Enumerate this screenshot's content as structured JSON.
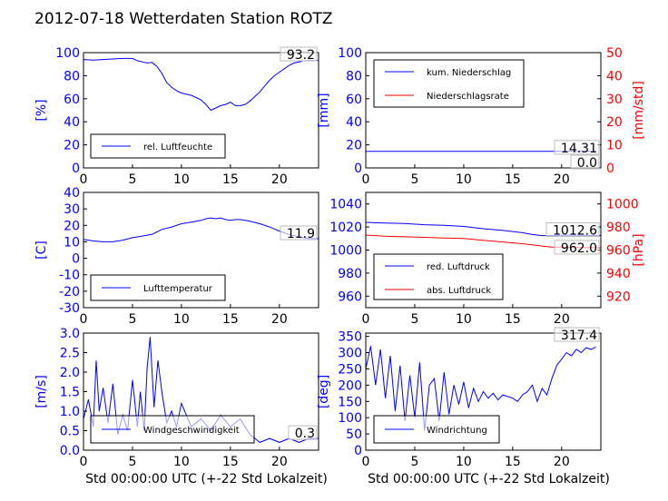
{
  "title": "2012-07-18 Wetterdaten Station ROTZ",
  "colors": {
    "primary": "#0000ff",
    "secondary": "#ff0000",
    "axis": "#000000"
  },
  "chart_data": [
    {
      "id": "humidity",
      "type": "line",
      "ylabel": "[%]",
      "xlim": [
        0,
        24
      ],
      "ylim": [
        0,
        100
      ],
      "xticks": [
        0,
        5,
        10,
        15,
        20
      ],
      "yticks": [
        0,
        20,
        40,
        60,
        80,
        100
      ],
      "series": [
        {
          "name": "rel. Luftfeuchte",
          "color": "#0000ff",
          "x": [
            0,
            1,
            2,
            3,
            4,
            5,
            5.5,
            6,
            6.5,
            7,
            7.5,
            8,
            8.5,
            9,
            9.5,
            10,
            10.5,
            11,
            11.5,
            12,
            12.5,
            13,
            13.5,
            14,
            14.5,
            15,
            15.5,
            16,
            16.5,
            17,
            17.5,
            18,
            18.5,
            19,
            19.5,
            20,
            20.5,
            21,
            21.5,
            22,
            22.5,
            23,
            24
          ],
          "y": [
            94,
            93.5,
            94,
            94.5,
            95,
            95,
            93,
            92,
            91,
            91.5,
            88,
            82,
            74,
            70,
            67,
            65,
            64,
            63,
            61,
            59,
            55,
            50,
            52,
            54,
            55,
            57,
            54,
            54,
            55,
            58,
            62,
            66,
            71,
            76,
            80,
            83,
            86,
            89,
            91,
            92,
            93,
            93.2,
            93.2
          ]
        }
      ],
      "last_value": "93.2",
      "last_label_position": "top-right",
      "legend": {
        "position": "lower-left"
      }
    },
    {
      "id": "precipitation",
      "type": "line",
      "ylabel": "[mm]",
      "ylabel_right": "[mm/std]",
      "xlim": [
        0,
        24
      ],
      "ylim": [
        0,
        100
      ],
      "ylim_right": [
        0,
        50
      ],
      "xticks": [
        0,
        5,
        10,
        15,
        20
      ],
      "yticks": [
        0,
        20,
        40,
        60,
        80,
        100
      ],
      "yticks_right": [
        0,
        10,
        20,
        30,
        40,
        50
      ],
      "series": [
        {
          "name": "kum. Niederschlag",
          "color": "#0000ff",
          "axis": "left",
          "x": [
            0,
            23.5
          ],
          "y": [
            14.31,
            14.31
          ]
        },
        {
          "name": "Niederschlagsrate",
          "color": "#ff0000",
          "axis": "right",
          "x": [
            0,
            23.5
          ],
          "y": [
            0,
            0
          ]
        }
      ],
      "last_values": [
        "14.31",
        "0.0"
      ],
      "legend": {
        "position": "upper-left"
      }
    },
    {
      "id": "temperature",
      "type": "line",
      "ylabel": "[C]",
      "xlim": [
        0,
        24
      ],
      "ylim": [
        -30,
        40
      ],
      "xticks": [
        0,
        5,
        10,
        15,
        20
      ],
      "yticks": [
        -30,
        -20,
        -10,
        0,
        10,
        20,
        30,
        40
      ],
      "series": [
        {
          "name": "Lufttemperatur",
          "color": "#0000ff",
          "x": [
            0,
            1,
            2,
            3,
            4,
            5,
            6,
            7,
            7.5,
            8,
            9,
            10,
            11,
            12,
            12.5,
            13,
            13.5,
            14,
            14.5,
            15,
            15.5,
            16,
            17,
            18,
            19,
            20,
            21,
            22,
            23,
            24
          ],
          "y": [
            11.5,
            10.5,
            10,
            10,
            11,
            12.5,
            13.5,
            14.5,
            16,
            17.5,
            19,
            21,
            22,
            23,
            24,
            24.5,
            24,
            24.5,
            23.5,
            23,
            23.5,
            23.5,
            22.5,
            21,
            19,
            16.5,
            14.5,
            13,
            12,
            11.9
          ]
        }
      ],
      "last_value": "11.9",
      "last_label_position": "right",
      "legend": {
        "position": "lower-left"
      }
    },
    {
      "id": "pressure",
      "type": "line",
      "ylabel_right": "[hPa]",
      "xlim": [
        0,
        24
      ],
      "ylim": [
        950,
        1050
      ],
      "ylim_right": [
        910,
        1010
      ],
      "xticks": [
        0,
        5,
        10,
        15,
        20
      ],
      "yticks": [
        960,
        980,
        1000,
        1020,
        1040
      ],
      "yticks_right": [
        920,
        940,
        960,
        980,
        1000
      ],
      "series": [
        {
          "name": "red. Luftdruck",
          "color": "#0000ff",
          "axis": "left",
          "x": [
            0,
            2,
            4,
            6,
            8,
            10,
            12,
            14,
            16,
            17,
            18,
            19,
            20,
            22,
            24
          ],
          "y": [
            1024,
            1023.5,
            1023,
            1022,
            1021.5,
            1020.5,
            1018.5,
            1017,
            1015,
            1013.5,
            1012.5,
            1012.5,
            1013,
            1012.8,
            1012.6
          ]
        },
        {
          "name": "abs. Luftdruck",
          "color": "#ff0000",
          "axis": "right",
          "x": [
            0,
            2,
            4,
            6,
            8,
            10,
            12,
            14,
            16,
            17,
            18,
            19,
            20,
            22,
            24
          ],
          "y": [
            973,
            972,
            971.5,
            971,
            970.5,
            970,
            968.5,
            967,
            965.5,
            964.5,
            963.5,
            962.5,
            962.5,
            962.2,
            962.0
          ]
        }
      ],
      "last_values": [
        "1012.6",
        "962.0"
      ],
      "legend": {
        "position": "lower-left"
      }
    },
    {
      "id": "wind_speed",
      "type": "line",
      "ylabel": "[m/s]",
      "xlabel": "Std 00:00:00 UTC (+-22 Std Lokalzeit)",
      "xlim": [
        0,
        24
      ],
      "ylim": [
        0,
        3.0
      ],
      "xticks": [
        0,
        5,
        10,
        15,
        20
      ],
      "yticks": [
        "0.0",
        "0.5",
        "1.0",
        "1.5",
        "2.0",
        "2.5",
        "3.0"
      ],
      "series": [
        {
          "name": "Windgeschwindigkeit",
          "color": "#0000ff",
          "x": [
            0,
            0.5,
            1,
            1.3,
            1.6,
            2,
            2.5,
            3,
            3.5,
            4,
            4.5,
            5,
            5.5,
            5.8,
            6.2,
            6.5,
            6.8,
            7.2,
            7.6,
            8,
            8.5,
            9,
            9.5,
            10,
            11,
            12,
            13,
            14,
            15,
            16,
            17,
            17.5,
            18,
            19,
            20,
            21,
            22,
            23,
            24
          ],
          "y": [
            0.8,
            1.3,
            0.6,
            2.3,
            1.0,
            1.6,
            0.7,
            1.7,
            0.4,
            0.9,
            0.5,
            1.8,
            0.6,
            1.5,
            0.5,
            2.1,
            2.9,
            1.1,
            2.3,
            1.5,
            0.7,
            1.0,
            0.6,
            1.2,
            0.6,
            0.8,
            0.5,
            0.9,
            0.6,
            0.8,
            0.4,
            0.3,
            0.2,
            0.3,
            0.2,
            0.3,
            0.2,
            0.3,
            0.3
          ]
        }
      ],
      "last_value": "0.3",
      "last_label_position": "right",
      "legend": {
        "position": "lower-left"
      }
    },
    {
      "id": "wind_direction",
      "type": "line",
      "ylabel": "[deg]",
      "xlabel": "Std 00:00:00 UTC (+-22 Std Lokalzeit)",
      "xlim": [
        0,
        24
      ],
      "ylim": [
        0,
        360
      ],
      "xticks": [
        0,
        5,
        10,
        15,
        20
      ],
      "yticks": [
        0,
        50,
        100,
        150,
        200,
        250,
        300,
        350
      ],
      "series": [
        {
          "name": "Windrichtung",
          "color": "#0000ff",
          "x": [
            0,
            0.5,
            1,
            1.5,
            2,
            2.5,
            3,
            3.5,
            4,
            4.5,
            5,
            5.5,
            6,
            6.5,
            7,
            7.5,
            8,
            8.5,
            9,
            9.5,
            10,
            10.5,
            11,
            11.5,
            12,
            12.5,
            13,
            13.5,
            14,
            14.5,
            15,
            15.5,
            16,
            16.5,
            17,
            17.5,
            18,
            18.5,
            19,
            19.5,
            20,
            20.5,
            21,
            21.5,
            22,
            22.5,
            23,
            23.5
          ],
          "y": [
            250,
            320,
            200,
            310,
            160,
            290,
            120,
            260,
            90,
            230,
            100,
            270,
            60,
            200,
            220,
            90,
            240,
            110,
            200,
            140,
            210,
            130,
            190,
            150,
            180,
            160,
            175,
            155,
            170,
            165,
            160,
            150,
            170,
            180,
            200,
            150,
            190,
            170,
            220,
            260,
            280,
            300,
            290,
            310,
            300,
            315,
            310,
            317.4
          ]
        }
      ],
      "last_value": "317.4",
      "last_label_position": "top-right",
      "legend": {
        "position": "lower-left"
      }
    }
  ]
}
